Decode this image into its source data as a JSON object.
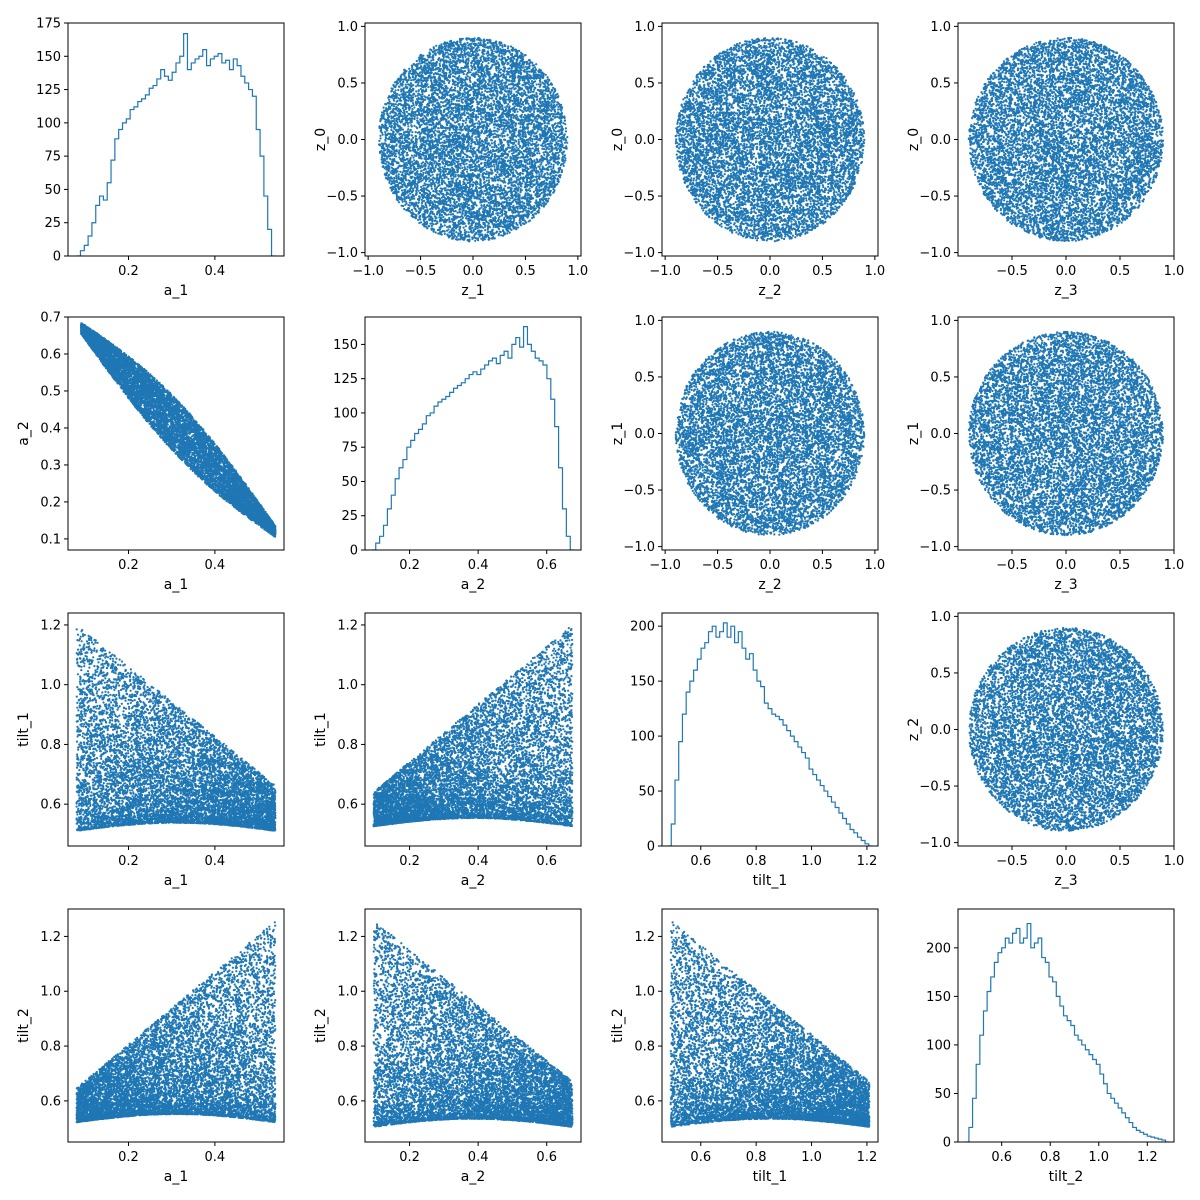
{
  "figure": {
    "background": "#ffffff",
    "color": "#1f77b4"
  },
  "chart_data": [
    {
      "type": "histogram",
      "xlabel": "a_1",
      "ylabel": "",
      "xlim": [
        0.06,
        0.56
      ],
      "ylim": [
        0,
        175
      ],
      "xticks": [
        0.2,
        0.4
      ],
      "xticklabels": [
        "0.2",
        "0.4"
      ],
      "yticks": [
        0,
        25,
        50,
        75,
        100,
        125,
        150,
        175
      ],
      "yticklabels": [
        "0",
        "25",
        "50",
        "75",
        "100",
        "125",
        "150",
        "175"
      ],
      "bins": [
        0.08,
        0.54
      ],
      "counts": [
        0,
        4,
        8,
        15,
        25,
        38,
        45,
        42,
        55,
        72,
        88,
        95,
        100,
        103,
        110,
        112,
        116,
        118,
        121,
        126,
        128,
        133,
        140,
        135,
        132,
        138,
        145,
        150,
        167,
        140,
        145,
        148,
        150,
        155,
        143,
        148,
        150,
        152,
        145,
        147,
        140,
        148,
        143,
        135,
        130,
        125,
        120,
        95,
        75,
        45,
        20,
        0
      ]
    },
    {
      "type": "scatter",
      "xlabel": "z_1",
      "ylabel": "z_0",
      "shape": "disk",
      "n": 9000,
      "xlim": [
        -1.03,
        1.03
      ],
      "ylim": [
        -1.03,
        1.03
      ],
      "xticks": [
        -1,
        -0.5,
        0,
        0.5,
        1
      ],
      "xticklabels": [
        "−1.0",
        "−0.5",
        "0.0",
        "0.5",
        "1.0"
      ],
      "yticks": [
        -1,
        -0.5,
        0,
        0.5,
        1
      ],
      "yticklabels": [
        "−1.0",
        "−0.5",
        "0.0",
        "0.5",
        "1.0"
      ]
    },
    {
      "type": "scatter",
      "xlabel": "z_2",
      "ylabel": "z_0",
      "shape": "disk",
      "n": 9000,
      "xlim": [
        -1.03,
        1.03
      ],
      "ylim": [
        -1.03,
        1.03
      ],
      "xticks": [
        -1,
        -0.5,
        0,
        0.5,
        1
      ],
      "xticklabels": [
        "−1.0",
        "−0.5",
        "0.0",
        "0.5",
        "1.0"
      ],
      "yticks": [
        -1,
        -0.5,
        0,
        0.5,
        1
      ],
      "yticklabels": [
        "−1.0",
        "−0.5",
        "0.0",
        "0.5",
        "1.0"
      ]
    },
    {
      "type": "scatter",
      "xlabel": "z_3",
      "ylabel": "z_0",
      "shape": "disk",
      "n": 9000,
      "xlim": [
        -1.0,
        1.0
      ],
      "ylim": [
        -1.03,
        1.03
      ],
      "xticks": [
        -0.5,
        0,
        0.5,
        1
      ],
      "xticklabels": [
        "−0.5",
        "0.0",
        "0.5",
        "1.0"
      ],
      "yticks": [
        -1,
        -0.5,
        0,
        0.5,
        1
      ],
      "yticklabels": [
        "−1.0",
        "−0.5",
        "0.0",
        "0.5",
        "1.0"
      ]
    },
    {
      "type": "scatter",
      "xlabel": "a_1",
      "ylabel": "a_2",
      "shape": "band-down",
      "n": 9000,
      "xlim": [
        0.06,
        0.56
      ],
      "ylim": [
        0.07,
        0.7
      ],
      "xticks": [
        0.2,
        0.4
      ],
      "xticklabels": [
        "0.2",
        "0.4"
      ],
      "yticks": [
        0.1,
        0.2,
        0.3,
        0.4,
        0.5,
        0.6,
        0.7
      ],
      "yticklabels": [
        "0.1",
        "0.2",
        "0.3",
        "0.4",
        "0.5",
        "0.6",
        "0.7"
      ]
    },
    {
      "type": "histogram",
      "xlabel": "a_2",
      "ylabel": "",
      "xlim": [
        0.07,
        0.7
      ],
      "ylim": [
        0,
        170
      ],
      "xticks": [
        0.2,
        0.4,
        0.6
      ],
      "xticklabels": [
        "0.2",
        "0.4",
        "0.6"
      ],
      "yticks": [
        0,
        25,
        50,
        75,
        100,
        125,
        150
      ],
      "yticklabels": [
        "0",
        "25",
        "50",
        "75",
        "100",
        "125",
        "150"
      ],
      "bins": [
        0.09,
        0.68
      ],
      "counts": [
        0,
        5,
        10,
        18,
        30,
        40,
        52,
        60,
        66,
        75,
        80,
        85,
        88,
        92,
        98,
        100,
        105,
        108,
        110,
        112,
        115,
        118,
        120,
        122,
        125,
        128,
        130,
        128,
        132,
        135,
        138,
        140,
        136,
        142,
        145,
        140,
        150,
        155,
        148,
        163,
        150,
        145,
        140,
        138,
        135,
        125,
        110,
        90,
        60,
        30,
        10,
        0
      ]
    },
    {
      "type": "scatter",
      "xlabel": "z_2",
      "ylabel": "z_1",
      "shape": "disk",
      "n": 9000,
      "xlim": [
        -1.03,
        1.03
      ],
      "ylim": [
        -1.03,
        1.03
      ],
      "xticks": [
        -1,
        -0.5,
        0,
        0.5,
        1
      ],
      "xticklabels": [
        "−1.0",
        "−0.5",
        "0.0",
        "0.5",
        "1.0"
      ],
      "yticks": [
        -1,
        -0.5,
        0,
        0.5,
        1
      ],
      "yticklabels": [
        "−1.0",
        "−0.5",
        "0.0",
        "0.5",
        "1.0"
      ]
    },
    {
      "type": "scatter",
      "xlabel": "z_3",
      "ylabel": "z_1",
      "shape": "disk",
      "n": 9000,
      "xlim": [
        -1.0,
        1.0
      ],
      "ylim": [
        -1.03,
        1.03
      ],
      "xticks": [
        -0.5,
        0,
        0.5,
        1
      ],
      "xticklabels": [
        "−0.5",
        "0.0",
        "0.5",
        "1.0"
      ],
      "yticks": [
        -1,
        -0.5,
        0,
        0.5,
        1
      ],
      "yticklabels": [
        "−1.0",
        "−0.5",
        "0.0",
        "0.5",
        "1.0"
      ]
    },
    {
      "type": "scatter",
      "xlabel": "a_1",
      "ylabel": "tilt_1",
      "shape": "tri-left",
      "n": 9000,
      "xlim": [
        0.06,
        0.56
      ],
      "ylim": [
        0.46,
        1.24
      ],
      "xticks": [
        0.2,
        0.4
      ],
      "xticklabels": [
        "0.2",
        "0.4"
      ],
      "yticks": [
        0.6,
        0.8,
        1.0,
        1.2
      ],
      "yticklabels": [
        "0.6",
        "0.8",
        "1.0",
        "1.2"
      ]
    },
    {
      "type": "scatter",
      "xlabel": "a_2",
      "ylabel": "tilt_1",
      "shape": "tri-right",
      "n": 9000,
      "xlim": [
        0.07,
        0.7
      ],
      "ylim": [
        0.46,
        1.24
      ],
      "xticks": [
        0.2,
        0.4,
        0.6
      ],
      "xticklabels": [
        "0.2",
        "0.4",
        "0.6"
      ],
      "yticks": [
        0.6,
        0.8,
        1.0,
        1.2
      ],
      "yticklabels": [
        "0.6",
        "0.8",
        "1.0",
        "1.2"
      ]
    },
    {
      "type": "histogram",
      "xlabel": "tilt_1",
      "ylabel": "",
      "xlim": [
        0.46,
        1.24
      ],
      "ylim": [
        0,
        212
      ],
      "xticks": [
        0.6,
        0.8,
        1.0,
        1.2
      ],
      "xticklabels": [
        "0.6",
        "0.8",
        "1.0",
        "1.2"
      ],
      "yticks": [
        0,
        50,
        100,
        150,
        200
      ],
      "yticklabels": [
        "0",
        "50",
        "100",
        "150",
        "200"
      ],
      "bins": [
        0.48,
        1.22
      ],
      "counts": [
        0,
        20,
        60,
        95,
        120,
        140,
        150,
        160,
        170,
        180,
        185,
        195,
        200,
        190,
        195,
        203,
        190,
        200,
        185,
        195,
        180,
        170,
        175,
        160,
        150,
        145,
        130,
        125,
        120,
        118,
        115,
        110,
        105,
        100,
        95,
        90,
        85,
        80,
        70,
        65,
        60,
        55,
        50,
        45,
        40,
        35,
        30,
        25,
        20,
        15,
        12,
        8,
        5,
        2,
        0
      ]
    },
    {
      "type": "scatter",
      "xlabel": "z_3",
      "ylabel": "z_2",
      "shape": "disk",
      "n": 9000,
      "xlim": [
        -1.0,
        1.0
      ],
      "ylim": [
        -1.03,
        1.03
      ],
      "xticks": [
        -0.5,
        0,
        0.5,
        1
      ],
      "xticklabels": [
        "−0.5",
        "0.0",
        "0.5",
        "1.0"
      ],
      "yticks": [
        -1,
        -0.5,
        0,
        0.5,
        1
      ],
      "yticklabels": [
        "−1.0",
        "−0.5",
        "0.0",
        "0.5",
        "1.0"
      ]
    },
    {
      "type": "scatter",
      "xlabel": "a_1",
      "ylabel": "tilt_2",
      "shape": "tri-right",
      "n": 9000,
      "xlim": [
        0.06,
        0.56
      ],
      "ylim": [
        0.45,
        1.3
      ],
      "xticks": [
        0.2,
        0.4
      ],
      "xticklabels": [
        "0.2",
        "0.4"
      ],
      "yticks": [
        0.6,
        0.8,
        1.0,
        1.2
      ],
      "yticklabels": [
        "0.6",
        "0.8",
        "1.0",
        "1.2"
      ]
    },
    {
      "type": "scatter",
      "xlabel": "a_2",
      "ylabel": "tilt_2",
      "shape": "tri-left",
      "n": 9000,
      "xlim": [
        0.07,
        0.7
      ],
      "ylim": [
        0.45,
        1.3
      ],
      "xticks": [
        0.2,
        0.4,
        0.6
      ],
      "xticklabels": [
        "0.2",
        "0.4",
        "0.6"
      ],
      "yticks": [
        0.6,
        0.8,
        1.0,
        1.2
      ],
      "yticklabels": [
        "0.6",
        "0.8",
        "1.0",
        "1.2"
      ]
    },
    {
      "type": "scatter",
      "xlabel": "tilt_1",
      "ylabel": "tilt_2",
      "shape": "tri-left",
      "n": 9000,
      "xlim": [
        0.46,
        1.24
      ],
      "ylim": [
        0.45,
        1.3
      ],
      "xticks": [
        0.6,
        0.8,
        1.0,
        1.2
      ],
      "xticklabels": [
        "0.6",
        "0.8",
        "1.0",
        "1.2"
      ],
      "yticks": [
        0.6,
        0.8,
        1.0,
        1.2
      ],
      "yticklabels": [
        "0.6",
        "0.8",
        "1.0",
        "1.2"
      ]
    },
    {
      "type": "histogram",
      "xlabel": "tilt_2",
      "ylabel": "",
      "xlim": [
        0.42,
        1.31
      ],
      "ylim": [
        0,
        240
      ],
      "xticks": [
        0.6,
        0.8,
        1.0,
        1.2
      ],
      "xticklabels": [
        "0.6",
        "0.8",
        "1.0",
        "1.2"
      ],
      "yticks": [
        0,
        50,
        100,
        150,
        200
      ],
      "yticklabels": [
        "0",
        "50",
        "100",
        "150",
        "200"
      ],
      "bins": [
        0.45,
        1.29
      ],
      "counts": [
        0,
        15,
        45,
        80,
        110,
        135,
        155,
        170,
        185,
        195,
        200,
        210,
        205,
        215,
        220,
        205,
        210,
        225,
        200,
        205,
        210,
        190,
        185,
        170,
        165,
        150,
        140,
        130,
        125,
        120,
        110,
        105,
        100,
        95,
        90,
        85,
        80,
        70,
        60,
        50,
        45,
        40,
        35,
        30,
        25,
        20,
        15,
        12,
        10,
        8,
        6,
        5,
        4,
        3,
        2,
        0
      ]
    }
  ]
}
